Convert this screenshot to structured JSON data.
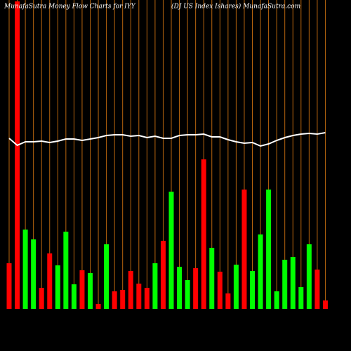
{
  "chart_data": {
    "type": "bar",
    "title": "MunafaSutra  Money Flow  Charts for IYY",
    "subtitle": "(DJ US Index Ishares) MunafaSutra.com",
    "ylim": [
      0,
      440
    ],
    "series": [
      {
        "type": "bar",
        "values": [
          65,
          438,
          113,
          99,
          30,
          79,
          62,
          110,
          35,
          55,
          51,
          7,
          92,
          25,
          27,
          54,
          36,
          30,
          65,
          97,
          167,
          60,
          41,
          58,
          213,
          87,
          53,
          22,
          63,
          170,
          54,
          106,
          170,
          25,
          70,
          74,
          31,
          92,
          56,
          12
        ],
        "colors": [
          "#ff0000",
          "#ff0000",
          "#00ff00",
          "#00ff00",
          "#ff0000",
          "#ff0000",
          "#00ff00",
          "#00ff00",
          "#00ff00",
          "#ff0000",
          "#00ff00",
          "#ff0000",
          "#00ff00",
          "#ff0000",
          "#ff0000",
          "#ff0000",
          "#ff0000",
          "#ff0000",
          "#00ff00",
          "#ff0000",
          "#00ff00",
          "#00ff00",
          "#00ff00",
          "#ff0000",
          "#ff0000",
          "#00ff00",
          "#ff0000",
          "#ff0000",
          "#00ff00",
          "#ff0000",
          "#00ff00",
          "#00ff00",
          "#00ff00",
          "#00ff00",
          "#00ff00",
          "#00ff00",
          "#00ff00",
          "#00ff00",
          "#ff0000",
          "#ff0000"
        ]
      },
      {
        "type": "line",
        "color": "#ffffff",
        "values": [
          243,
          233,
          238,
          238,
          239,
          237,
          239,
          242,
          242,
          240,
          242,
          244,
          247,
          248,
          248,
          246,
          247,
          244,
          246,
          243,
          243,
          247,
          248,
          248,
          249,
          245,
          245,
          241,
          238,
          236,
          237,
          232,
          235,
          240,
          244,
          247,
          249,
          250,
          249,
          251
        ]
      }
    ],
    "divider_color": "#b8650e"
  }
}
